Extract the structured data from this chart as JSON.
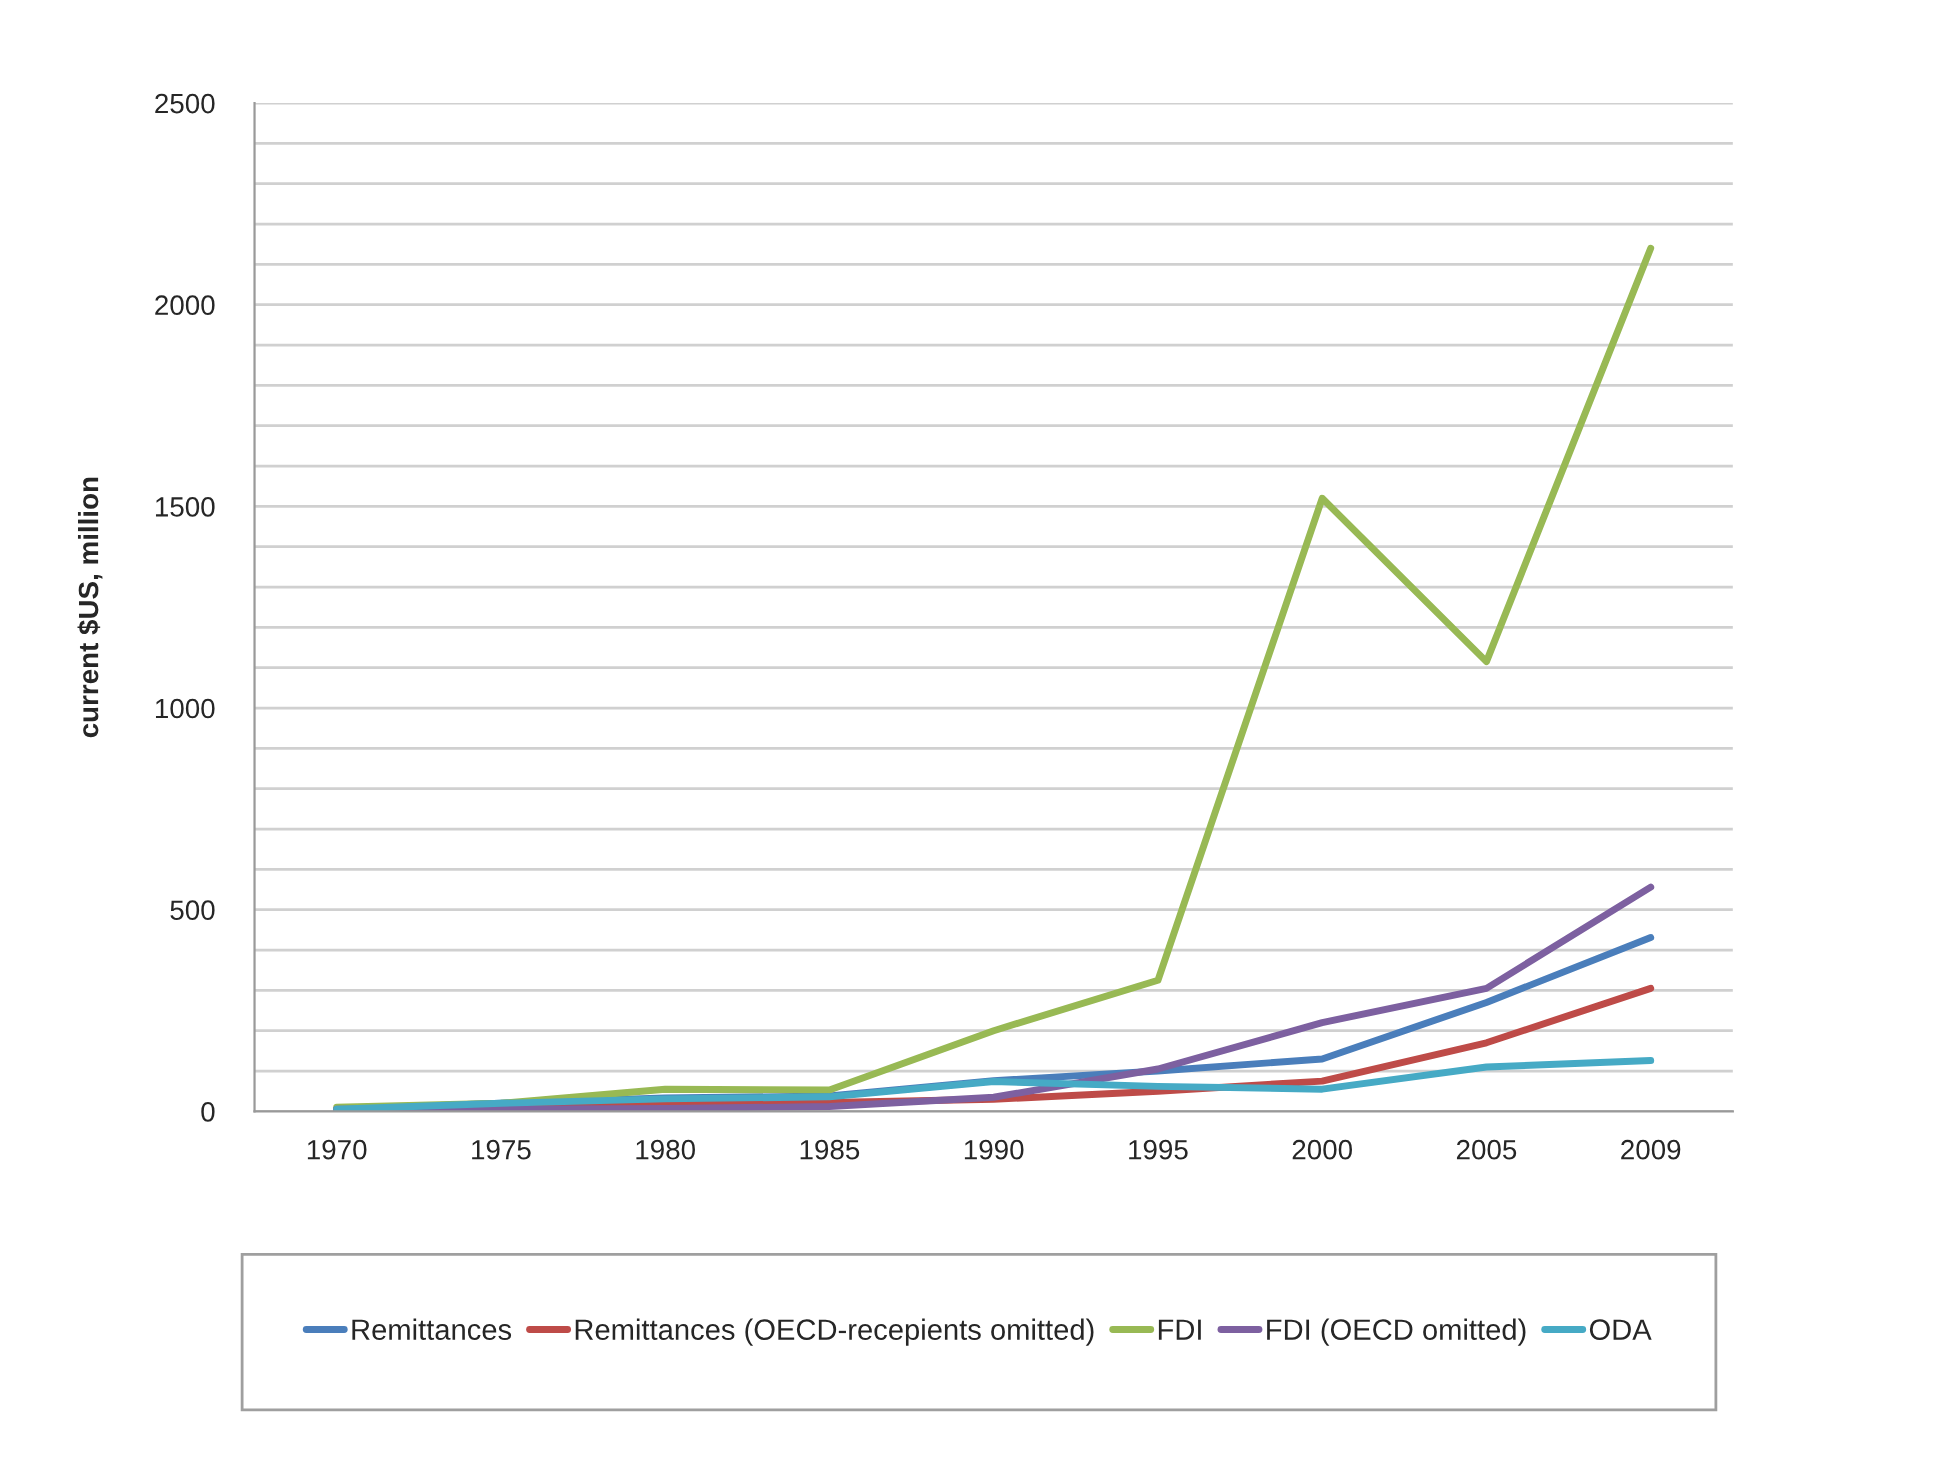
{
  "chart_data": {
    "type": "line",
    "ylabel": "current $US, million",
    "categories": [
      "1970",
      "1975",
      "1980",
      "1985",
      "1990",
      "1995",
      "2000",
      "2005",
      "2009"
    ],
    "series": [
      {
        "name": "Remittances",
        "color": "#4a7ebb",
        "values": [
          5,
          20,
          33,
          38,
          76,
          100,
          130,
          270,
          431
        ]
      },
      {
        "name": "Remittances (OECD-recepients omitted)",
        "color": "#be4b48",
        "values": [
          5,
          10,
          17,
          22,
          30,
          50,
          75,
          170,
          305
        ]
      },
      {
        "name": "FDI",
        "color": "#98b954",
        "values": [
          10,
          20,
          55,
          53,
          200,
          325,
          1520,
          1115,
          2140
        ]
      },
      {
        "name": "FDI (OECD omitted)",
        "color": "#7d60a0",
        "values": [
          5,
          5,
          7,
          12,
          35,
          105,
          220,
          305,
          556
        ]
      },
      {
        "name": "ODA",
        "color": "#46aac5",
        "values": [
          5,
          20,
          31,
          36,
          74,
          62,
          55,
          110,
          126
        ]
      }
    ],
    "ylim": [
      0,
      2500
    ],
    "yticks": [
      0,
      {
        "value": 100,
        "label": null
      },
      {
        "value": 200,
        "label": null
      },
      {
        "value": 300,
        "label": null
      },
      {
        "value": 400,
        "label": null
      },
      500,
      {
        "value": 600,
        "label": null
      },
      {
        "value": 700,
        "label": null
      },
      {
        "value": 800,
        "label": null
      },
      {
        "value": 900,
        "label": null
      },
      1000,
      {
        "value": 1100,
        "label": null
      },
      {
        "value": 1200,
        "label": null
      },
      {
        "value": 1300,
        "label": null
      },
      {
        "value": 1400,
        "label": null
      },
      1500,
      {
        "value": 1600,
        "label": null
      },
      {
        "value": 1700,
        "label": null
      },
      {
        "value": 1800,
        "label": null
      },
      {
        "value": 1900,
        "label": null
      },
      2000,
      {
        "value": 2100,
        "label": null
      },
      {
        "value": 2200,
        "label": null
      },
      {
        "value": 2300,
        "label": null
      },
      {
        "value": 2400,
        "label": null
      },
      2500
    ],
    "grid": "y",
    "legend": "bottom",
    "marker": "none",
    "line_style": "solid"
  }
}
